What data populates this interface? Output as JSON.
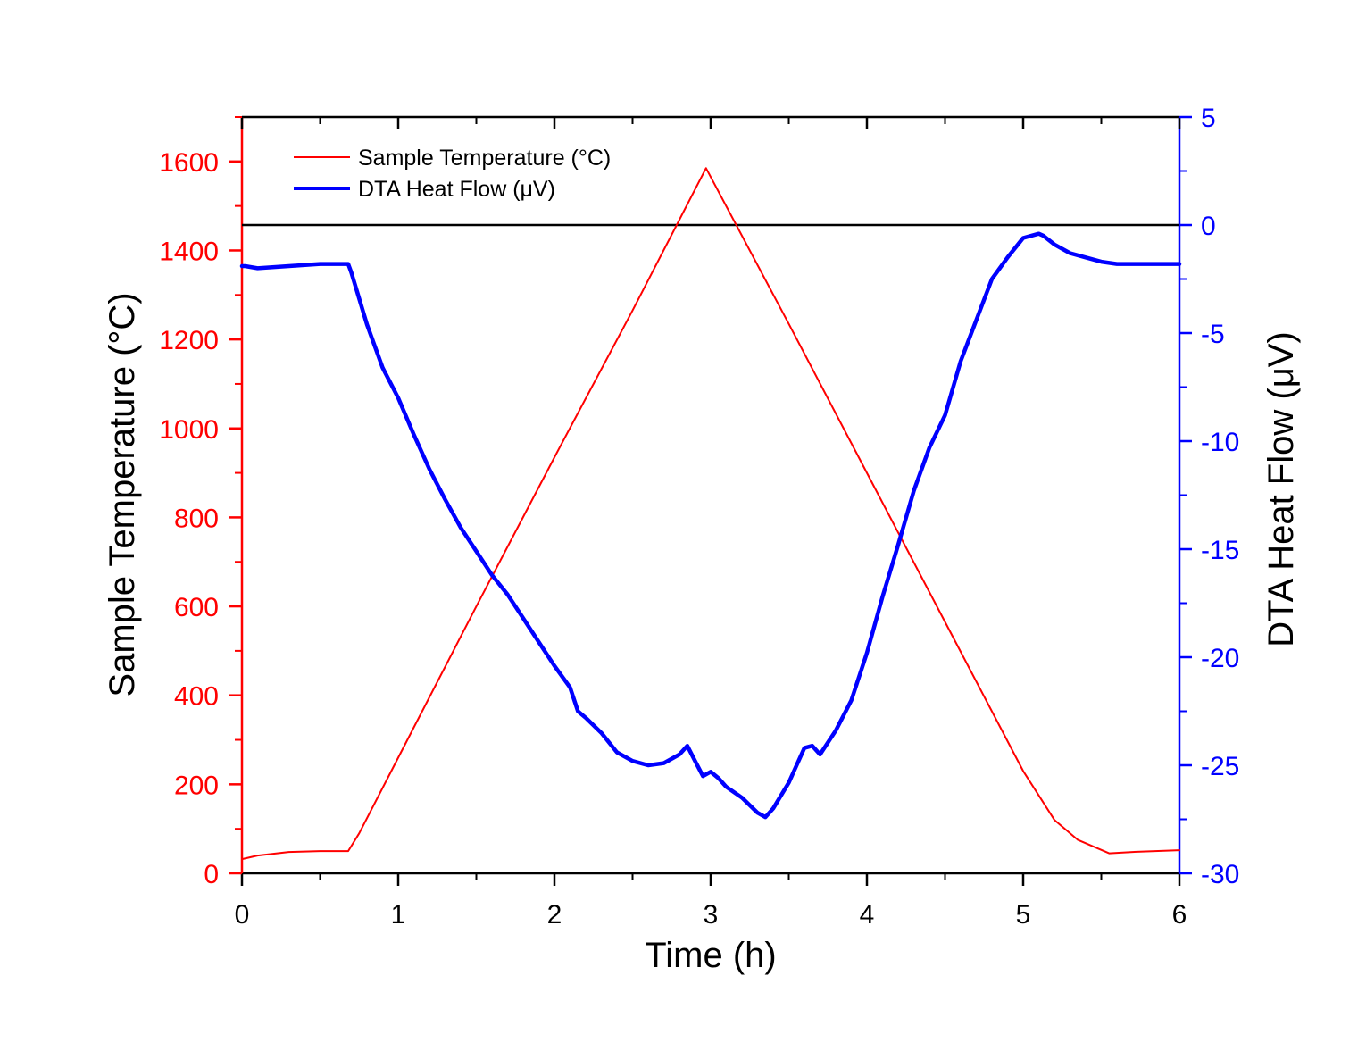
{
  "chart_data": {
    "type": "line",
    "xlabel": "Time (h)",
    "ylabel_left": "Sample Temperature (°C)",
    "ylabel_right": "DTA Heat Flow (μV)",
    "xlim": [
      0,
      6
    ],
    "ylim_left": [
      0,
      1700
    ],
    "ylim_right": [
      -30,
      5
    ],
    "x_ticks": [
      "0",
      "1",
      "2",
      "3",
      "4",
      "5",
      "6"
    ],
    "y_left_ticks": [
      "0",
      "200",
      "400",
      "600",
      "800",
      "1000",
      "1200",
      "1400",
      "1600"
    ],
    "y_right_ticks": [
      "-30",
      "-25",
      "-20",
      "-15",
      "-10",
      "-5",
      "0",
      "5"
    ],
    "legend_position": "top-left",
    "reference_line": {
      "axis": "right",
      "value": 0,
      "color": "#000000"
    },
    "colors": {
      "temperature": "#ff0000",
      "heatflow": "#0000ff",
      "axis": "#000000"
    },
    "series": [
      {
        "name": "Sample Temperature (°C)",
        "axis": "left",
        "color": "#ff0000",
        "x": [
          0,
          0.1,
          0.3,
          0.5,
          0.68,
          0.75,
          1.0,
          1.5,
          2.0,
          2.5,
          2.97,
          3.5,
          4.0,
          4.5,
          5.0,
          5.2,
          5.35,
          5.55,
          5.7,
          6.0
        ],
        "y": [
          32,
          40,
          48,
          50,
          50,
          90,
          260,
          600,
          935,
          1265,
          1585,
          1235,
          900,
          565,
          230,
          120,
          75,
          45,
          48,
          52
        ]
      },
      {
        "name": "DTA Heat Flow (μV)",
        "axis": "right",
        "color": "#0000ff",
        "x": [
          0,
          0.02,
          0.1,
          0.3,
          0.5,
          0.68,
          0.7,
          0.8,
          0.9,
          1.0,
          1.1,
          1.2,
          1.3,
          1.4,
          1.5,
          1.6,
          1.7,
          1.8,
          1.9,
          2.0,
          2.1,
          2.15,
          2.2,
          2.3,
          2.4,
          2.5,
          2.6,
          2.7,
          2.8,
          2.85,
          2.9,
          2.95,
          3.0,
          3.05,
          3.1,
          3.2,
          3.3,
          3.35,
          3.4,
          3.5,
          3.6,
          3.65,
          3.7,
          3.8,
          3.9,
          4.0,
          4.1,
          4.2,
          4.3,
          4.4,
          4.5,
          4.6,
          4.7,
          4.8,
          4.9,
          5.0,
          5.1,
          5.13,
          5.2,
          5.3,
          5.4,
          5.5,
          5.6,
          5.8,
          6.0
        ],
        "y": [
          -1.9,
          -1.9,
          -2.0,
          -1.9,
          -1.8,
          -1.8,
          -2.2,
          -4.6,
          -6.6,
          -8.0,
          -9.7,
          -11.3,
          -12.7,
          -14.0,
          -15.1,
          -16.2,
          -17.1,
          -18.2,
          -19.3,
          -20.4,
          -21.4,
          -22.5,
          -22.8,
          -23.5,
          -24.4,
          -24.8,
          -25.0,
          -24.9,
          -24.5,
          -24.1,
          -24.8,
          -25.5,
          -25.3,
          -25.6,
          -26.0,
          -26.5,
          -27.2,
          -27.4,
          -27.0,
          -25.8,
          -24.2,
          -24.1,
          -24.5,
          -23.4,
          -22.0,
          -19.8,
          -17.2,
          -14.8,
          -12.3,
          -10.3,
          -8.8,
          -6.3,
          -4.4,
          -2.5,
          -1.5,
          -0.6,
          -0.4,
          -0.5,
          -0.9,
          -1.3,
          -1.5,
          -1.7,
          -1.8,
          -1.8,
          -1.8
        ]
      }
    ]
  }
}
